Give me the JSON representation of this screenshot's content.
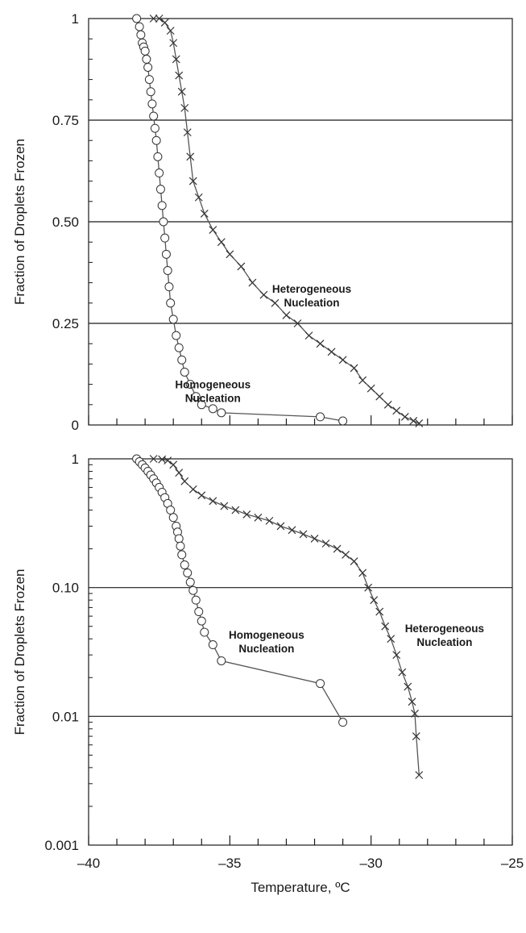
{
  "chart_data": [
    {
      "type": "line",
      "panel": "top",
      "ylabel": "Fraction of Droplets Frozen",
      "xlim": [
        -40,
        -25
      ],
      "ylim": [
        0,
        1
      ],
      "yscale": "linear",
      "grid": "horizontal",
      "y_ticks": [
        0,
        0.25,
        0.5,
        0.75,
        1
      ],
      "y_tick_labels": [
        "0",
        "0.25",
        "0.50",
        "0.75",
        "1"
      ],
      "x_tick_labels": [],
      "series": [
        {
          "marker": "circle",
          "x": [
            -38.3,
            -38.2,
            -38.15,
            -38.1,
            -38.05,
            -38.0,
            -37.95,
            -37.9,
            -37.85,
            -37.8,
            -37.75,
            -37.7,
            -37.65,
            -37.6,
            -37.55,
            -37.5,
            -37.45,
            -37.4,
            -37.35,
            -37.3,
            -37.25,
            -37.2,
            -37.15,
            -37.1,
            -37.0,
            -36.9,
            -36.8,
            -36.7,
            -36.6,
            -36.4,
            -36.2,
            -36.0,
            -35.6,
            -35.3,
            -31.8,
            -31.0
          ],
          "y": [
            1.0,
            0.98,
            0.96,
            0.94,
            0.93,
            0.92,
            0.9,
            0.88,
            0.85,
            0.82,
            0.79,
            0.76,
            0.73,
            0.7,
            0.66,
            0.62,
            0.58,
            0.54,
            0.5,
            0.46,
            0.42,
            0.38,
            0.34,
            0.3,
            0.26,
            0.22,
            0.19,
            0.16,
            0.13,
            0.1,
            0.07,
            0.05,
            0.04,
            0.03,
            0.02,
            0.01
          ]
        },
        {
          "marker": "x",
          "x": [
            -37.7,
            -37.5,
            -37.3,
            -37.1,
            -37.0,
            -36.9,
            -36.8,
            -36.7,
            -36.6,
            -36.5,
            -36.4,
            -36.3,
            -36.1,
            -35.9,
            -35.6,
            -35.3,
            -35.0,
            -34.6,
            -34.2,
            -33.8,
            -33.4,
            -33.0,
            -32.6,
            -32.2,
            -31.8,
            -31.4,
            -31.0,
            -30.6,
            -30.3,
            -30.0,
            -29.7,
            -29.4,
            -29.1,
            -28.8,
            -28.5,
            -28.3
          ],
          "y": [
            1.0,
            1.0,
            0.99,
            0.97,
            0.94,
            0.9,
            0.86,
            0.82,
            0.78,
            0.72,
            0.66,
            0.6,
            0.56,
            0.52,
            0.48,
            0.45,
            0.42,
            0.39,
            0.35,
            0.32,
            0.3,
            0.27,
            0.25,
            0.22,
            0.2,
            0.18,
            0.16,
            0.14,
            0.11,
            0.09,
            0.07,
            0.05,
            0.035,
            0.02,
            0.01,
            0.004
          ]
        }
      ],
      "annotations": [
        {
          "lines": [
            "Heterogeneous",
            "Nucleation"
          ],
          "x": -32.1,
          "y": 0.325
        },
        {
          "lines": [
            "Homogeneous",
            "Nucleation"
          ],
          "x": -35.6,
          "y": 0.09
        }
      ]
    },
    {
      "type": "line",
      "panel": "bottom",
      "xlabel": "Temperature, ºC",
      "ylabel": "Fraction of Droplets Frozen",
      "xlim": [
        -40,
        -25
      ],
      "ylim": [
        0.001,
        1
      ],
      "yscale": "log",
      "grid": "horizontal",
      "y_ticks": [
        0.001,
        0.01,
        0.1,
        1
      ],
      "y_tick_labels": [
        "0.001",
        "0.01",
        "0.10",
        "1"
      ],
      "x_ticks": [
        -40,
        -35,
        -30,
        -25
      ],
      "x_tick_labels": [
        "–40",
        "–35",
        "–30",
        "–25"
      ],
      "series": [
        {
          "marker": "circle",
          "x": [
            -38.3,
            -38.2,
            -38.1,
            -38.0,
            -37.9,
            -37.8,
            -37.7,
            -37.6,
            -37.5,
            -37.4,
            -37.3,
            -37.2,
            -37.1,
            -37.0,
            -36.9,
            -36.85,
            -36.8,
            -36.75,
            -36.7,
            -36.6,
            -36.5,
            -36.4,
            -36.3,
            -36.2,
            -36.1,
            -36.0,
            -35.9,
            -35.6,
            -35.3,
            -31.8,
            -31.0
          ],
          "y": [
            1.0,
            0.95,
            0.9,
            0.85,
            0.8,
            0.75,
            0.7,
            0.65,
            0.6,
            0.55,
            0.5,
            0.45,
            0.4,
            0.35,
            0.3,
            0.27,
            0.24,
            0.21,
            0.18,
            0.15,
            0.13,
            0.11,
            0.095,
            0.08,
            0.065,
            0.055,
            0.045,
            0.036,
            0.027,
            0.018,
            0.009
          ]
        },
        {
          "marker": "x",
          "x": [
            -37.7,
            -37.4,
            -37.2,
            -37.0,
            -36.8,
            -36.6,
            -36.3,
            -36.0,
            -35.6,
            -35.2,
            -34.8,
            -34.4,
            -34.0,
            -33.6,
            -33.2,
            -32.8,
            -32.4,
            -32.0,
            -31.6,
            -31.2,
            -30.9,
            -30.6,
            -30.3,
            -30.1,
            -29.9,
            -29.7,
            -29.5,
            -29.3,
            -29.1,
            -28.9,
            -28.7,
            -28.55,
            -28.45,
            -28.4,
            -28.3
          ],
          "y": [
            1.0,
            0.99,
            0.97,
            0.9,
            0.78,
            0.67,
            0.58,
            0.52,
            0.47,
            0.43,
            0.4,
            0.37,
            0.35,
            0.33,
            0.3,
            0.28,
            0.26,
            0.24,
            0.22,
            0.2,
            0.18,
            0.16,
            0.13,
            0.1,
            0.08,
            0.065,
            0.05,
            0.04,
            0.03,
            0.022,
            0.017,
            0.013,
            0.0105,
            0.007,
            0.0035
          ]
        }
      ],
      "annotations": [
        {
          "lines": [
            "Homogeneous",
            "Nucleation"
          ],
          "x": -33.7,
          "y": 0.04
        },
        {
          "lines": [
            "Heterogeneous",
            "Nucleation"
          ],
          "x": -27.4,
          "y": 0.045
        }
      ]
    }
  ]
}
